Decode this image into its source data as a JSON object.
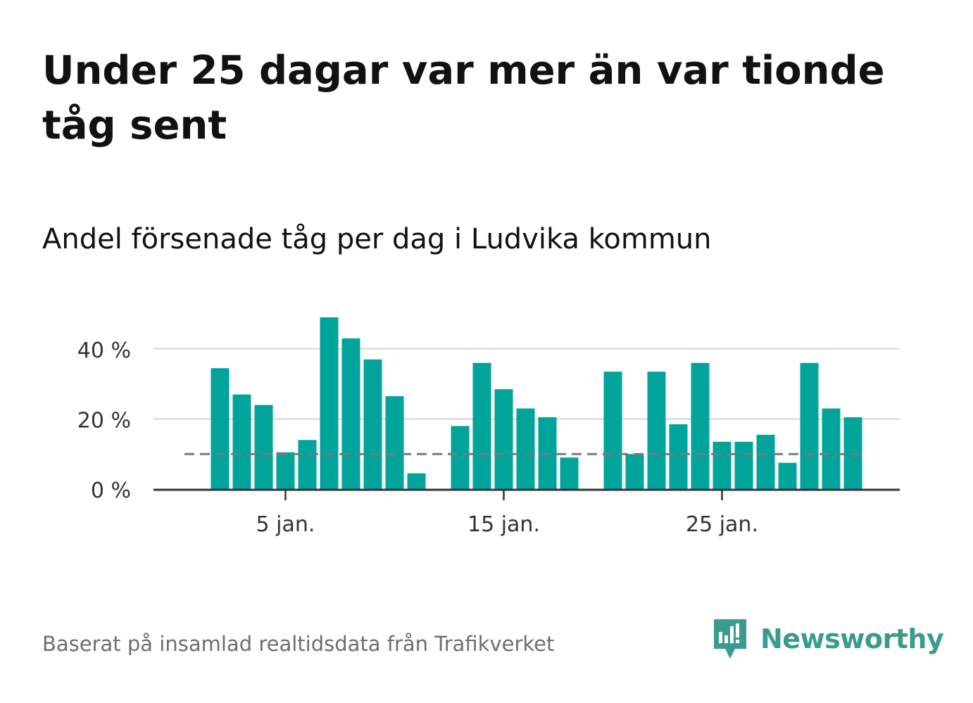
{
  "title": "Under 25 dagar var mer än var tionde tåg sent",
  "subtitle": "Andel försenade tåg per dag i Ludvika kommun",
  "source": "Baserat på insamlad realtidsdata från Trafikverket",
  "logo": {
    "text": "Newsworthy",
    "icon": "newsworthy-bar-chart-speech-bubble-icon",
    "color": "#3a9b8e"
  },
  "colors": {
    "bar": "#00a49a",
    "reference_line": "#7a7a7a",
    "grid": "#dcdcdc",
    "axis": "#333333"
  },
  "chart_data": {
    "type": "bar",
    "title": "Andel försenade tåg per dag i Ludvika kommun",
    "xlabel": "",
    "ylabel": "",
    "x_unit": "day of January",
    "x": [
      2,
      3,
      4,
      5,
      6,
      7,
      8,
      9,
      10,
      11,
      12,
      13,
      14,
      15,
      16,
      17,
      18,
      19,
      20,
      21,
      22,
      23,
      24,
      25,
      26,
      27,
      28,
      29,
      30,
      31,
      32
    ],
    "values": [
      34.5,
      27,
      24,
      10.5,
      14,
      49,
      43,
      37,
      26.5,
      4.5,
      null,
      18,
      36,
      28.5,
      23,
      20.5,
      9,
      null,
      33.5,
      10,
      33.5,
      18.5,
      36,
      13.5,
      13.5,
      15.5,
      7.5,
      36,
      23,
      20.5,
      null
    ],
    "ylim": [
      0,
      52
    ],
    "y_ticks": [
      0,
      20,
      40
    ],
    "y_tick_labels": [
      "0 %",
      "20 %",
      "40 %"
    ],
    "x_ticks": [
      5,
      15,
      25
    ],
    "x_tick_labels": [
      "5 jan.",
      "15 jan.",
      "25 jan."
    ],
    "reference_line": 10,
    "grid": true,
    "legend": "none"
  }
}
